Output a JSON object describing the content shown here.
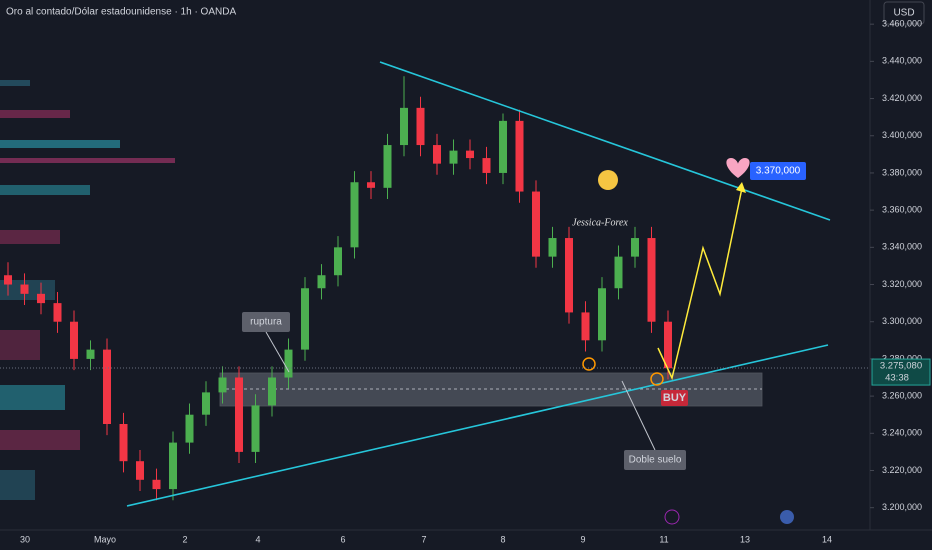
{
  "header": {
    "title": "Oro al contado/Dólar estadounidense · 1h · OANDA",
    "currency": "USD"
  },
  "chart_data": {
    "type": "candlestick",
    "open": [
      3325,
      3320,
      3315,
      3310,
      3300,
      3280,
      3285,
      3245,
      3225,
      3215,
      3210,
      3235,
      3250,
      3262,
      3270,
      3230,
      3255,
      3270,
      3285,
      3318,
      3325,
      3340,
      3375,
      3372,
      3395,
      3415,
      3395,
      3385,
      3392,
      3388,
      3380,
      3408,
      3370,
      3335,
      3345,
      3305,
      3290,
      3318,
      3335,
      3345,
      3300
    ],
    "high": [
      3332,
      3326,
      3321,
      3316,
      3306,
      3290,
      3291,
      3251,
      3231,
      3221,
      3241,
      3256,
      3268,
      3276,
      3276,
      3261,
      3276,
      3291,
      3324,
      3331,
      3346,
      3381,
      3381,
      3401,
      3432,
      3421,
      3401,
      3398,
      3398,
      3394,
      3412,
      3414,
      3376,
      3351,
      3351,
      3311,
      3324,
      3341,
      3351,
      3351,
      3306
    ],
    "low": [
      3314,
      3309,
      3304,
      3294,
      3274,
      3274,
      3239,
      3219,
      3209,
      3204,
      3204,
      3229,
      3244,
      3256,
      3224,
      3224,
      3249,
      3264,
      3279,
      3312,
      3319,
      3334,
      3366,
      3366,
      3389,
      3389,
      3379,
      3379,
      3382,
      3374,
      3374,
      3364,
      3329,
      3329,
      3299,
      3284,
      3284,
      3312,
      3329,
      3294,
      3269
    ],
    "close": [
      3320,
      3315,
      3310,
      3300,
      3280,
      3285,
      3245,
      3225,
      3215,
      3210,
      3235,
      3250,
      3262,
      3270,
      3230,
      3255,
      3270,
      3285,
      3318,
      3325,
      3340,
      3375,
      3372,
      3395,
      3415,
      3395,
      3385,
      3392,
      3388,
      3380,
      3408,
      3370,
      3335,
      3345,
      3305,
      3290,
      3318,
      3335,
      3345,
      3300,
      3275
    ],
    "up_color": "#4caf50",
    "down_color": "#f23645",
    "ylim": [
      3188,
      3473
    ],
    "yticks": [
      {
        "value": 3200,
        "label": "3.200,000"
      },
      {
        "value": 3220,
        "label": "3.220,000"
      },
      {
        "value": 3240,
        "label": "3.240,000"
      },
      {
        "value": 3260,
        "label": "3.260,000"
      },
      {
        "value": 3280,
        "label": "3.280,000"
      },
      {
        "value": 3300,
        "label": "3.300,000"
      },
      {
        "value": 3320,
        "label": "3.320,000"
      },
      {
        "value": 3340,
        "label": "3.340,000"
      },
      {
        "value": 3360,
        "label": "3.360,000"
      },
      {
        "value": 3380,
        "label": "3.380,000"
      },
      {
        "value": 3400,
        "label": "3.400,000"
      },
      {
        "value": 3420,
        "label": "3.420,000"
      },
      {
        "value": 3440,
        "label": "3.440,000"
      },
      {
        "value": 3460,
        "label": "3.460,000"
      }
    ],
    "last_price": {
      "value": 3275.08,
      "label": "3.275,080"
    },
    "countdown": "43:38"
  },
  "time_axis": [
    "30",
    "Mayo",
    "2",
    "4",
    "6",
    "7",
    "8",
    "9",
    "11",
    "13",
    "14"
  ],
  "annotations": {
    "breakout": "ruptura",
    "double_bottom": "Doble suelo",
    "signal": "BUY",
    "target": "3.370,000",
    "watermark": "Jessica-Forex"
  }
}
